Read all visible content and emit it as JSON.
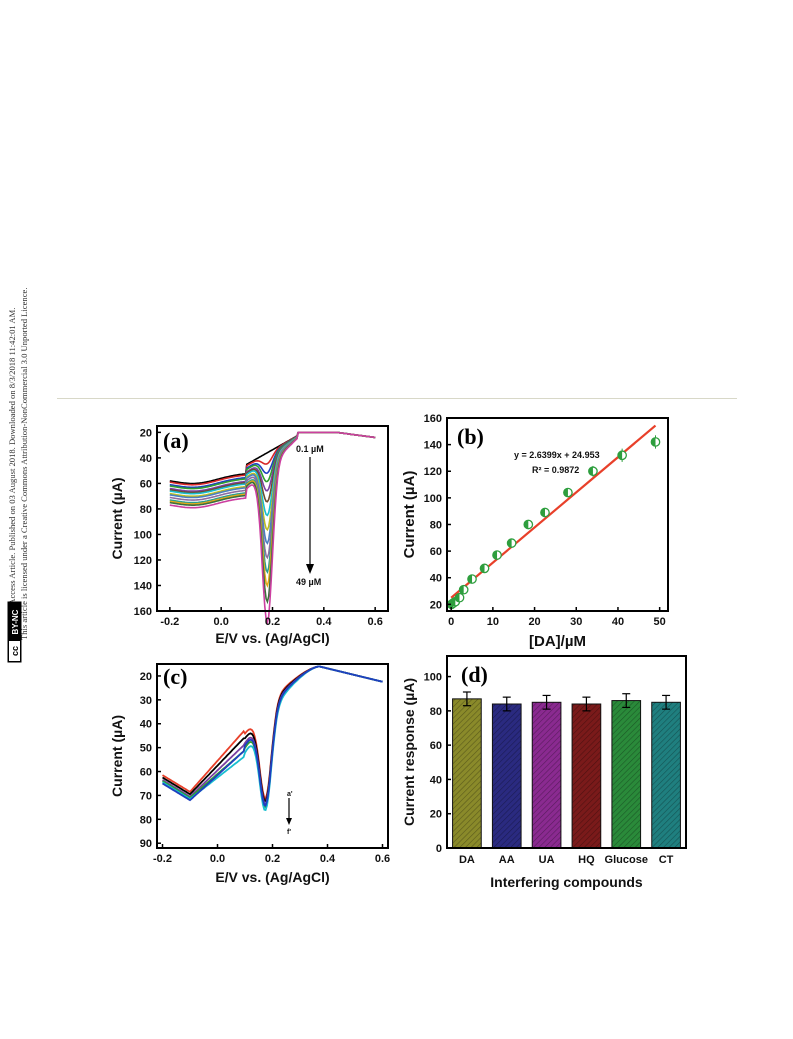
{
  "license": {
    "line1": "Open Access Article. Published on 03 August 2018. Downloaded on 8/3/2018 11:42:01 AM.",
    "line2": "This article is licensed under a Creative Commons Attribution-NonCommercial 3.0 Unported Licence.",
    "badge_cc": "cc",
    "badge_text": "BY-NC"
  },
  "chart_data": [
    {
      "id": "a",
      "type": "line",
      "panel_label": "(a)",
      "xlabel": "E/V vs. (Ag/AgCl)",
      "ylabel": "Current (µA)",
      "xlim": [
        -0.25,
        0.65
      ],
      "ylim": [
        160,
        15
      ],
      "x_ticks": [
        -0.2,
        0.0,
        0.2,
        0.4,
        0.6
      ],
      "x_tick_labels": [
        "-0.2",
        "0.0",
        "0.2",
        "0.4",
        "0.6"
      ],
      "y_ticks": [
        20,
        40,
        60,
        80,
        100,
        120,
        140,
        160
      ],
      "annotations": [
        "0.1 µM",
        "49 µM"
      ],
      "series": [
        {
          "color": "#000000",
          "base": 55,
          "peak": 20
        },
        {
          "color": "#d62728",
          "base": 56,
          "peak": 28
        },
        {
          "color": "#1f3fbf",
          "base": 58,
          "peak": 34
        },
        {
          "color": "#2e9e2e",
          "base": 59,
          "peak": 40
        },
        {
          "color": "#7a3fa0",
          "base": 61,
          "peak": 46
        },
        {
          "color": "#6b4c2f",
          "base": 62,
          "peak": 54
        },
        {
          "color": "#17becf",
          "base": 63,
          "peak": 64
        },
        {
          "color": "#bcbd22",
          "base": 65,
          "peak": 74
        },
        {
          "color": "#4a7fc0",
          "base": 66,
          "peak": 84
        },
        {
          "color": "#8c6d9e",
          "base": 68,
          "peak": 94
        },
        {
          "color": "#2a9d8f",
          "base": 70,
          "peak": 104
        },
        {
          "color": "#e6a817",
          "base": 71,
          "peak": 114
        },
        {
          "color": "#3c6e3c",
          "base": 72,
          "peak": 126
        },
        {
          "color": "#cc3fa0",
          "base": 74,
          "peak": 141
        }
      ]
    },
    {
      "id": "b",
      "type": "scatter",
      "panel_label": "(b)",
      "xlabel": "[DA]/µM",
      "ylabel": "Current (µA)",
      "xlim": [
        -1,
        52
      ],
      "ylim": [
        15,
        160
      ],
      "x_ticks": [
        0,
        10,
        20,
        30,
        40,
        50
      ],
      "y_ticks": [
        20,
        40,
        60,
        80,
        100,
        120,
        140,
        160
      ],
      "equation": "y = 2.6399x + 24.953",
      "r_squared": "R² = 0.9872",
      "fit": {
        "slope": 2.6399,
        "intercept": 24.953,
        "x_range": [
          0,
          49
        ]
      },
      "points": [
        {
          "x": 0.1,
          "y": 20,
          "err": 2
        },
        {
          "x": 0.5,
          "y": 21,
          "err": 2
        },
        {
          "x": 1,
          "y": 22,
          "err": 2
        },
        {
          "x": 2,
          "y": 25,
          "err": 2
        },
        {
          "x": 3,
          "y": 31,
          "err": 2
        },
        {
          "x": 5,
          "y": 39,
          "err": 2
        },
        {
          "x": 8,
          "y": 47,
          "err": 2
        },
        {
          "x": 11,
          "y": 57,
          "err": 2
        },
        {
          "x": 14.5,
          "y": 66,
          "err": 2
        },
        {
          "x": 18.5,
          "y": 80,
          "err": 2
        },
        {
          "x": 22.5,
          "y": 89,
          "err": 2
        },
        {
          "x": 28,
          "y": 104,
          "err": 3
        },
        {
          "x": 34,
          "y": 120,
          "err": 4
        },
        {
          "x": 41,
          "y": 132,
          "err": 5
        },
        {
          "x": 49,
          "y": 142,
          "err": 5
        }
      ],
      "marker_color": "#2e9e3e",
      "fit_color": "#e8402a"
    },
    {
      "id": "c",
      "type": "line",
      "panel_label": "(c)",
      "xlabel": "E/V vs. (Ag/AgCl)",
      "ylabel": "Current (µA)",
      "xlim": [
        -0.22,
        0.62
      ],
      "ylim": [
        92,
        15
      ],
      "x_ticks": [
        -0.2,
        0.0,
        0.2,
        0.4,
        0.6
      ],
      "x_tick_labels": [
        "-0.2",
        "0.0",
        "0.2",
        "0.4",
        "0.6"
      ],
      "y_ticks": [
        20,
        30,
        40,
        50,
        60,
        70,
        80,
        90
      ],
      "annotation_top": "a'",
      "annotation_bottom": "f'",
      "series": [
        {
          "color": "#e8402a",
          "offset": -1.5,
          "shoulder": 44
        },
        {
          "color": "#000000",
          "offset": -0.5,
          "shoulder": 46
        },
        {
          "color": "#7a3fa0",
          "offset": 0.5,
          "shoulder": 48
        },
        {
          "color": "#2e9e2e",
          "offset": 1.0,
          "shoulder": 50
        },
        {
          "color": "#17becf",
          "offset": 1.5,
          "shoulder": 52
        },
        {
          "color": "#1f3fbf",
          "offset": 2.0,
          "shoulder": 49
        }
      ]
    },
    {
      "id": "d",
      "type": "bar",
      "panel_label": "(d)",
      "xlabel": "Interfering compounds",
      "ylabel": "Current response (µA)",
      "ylim": [
        0,
        112
      ],
      "y_ticks": [
        0,
        20,
        40,
        60,
        80,
        100
      ],
      "categories": [
        "DA",
        "AA",
        "UA",
        "HQ",
        "Glucose",
        "CT"
      ],
      "values": [
        87,
        84,
        85,
        84,
        86,
        85
      ],
      "errors": [
        4,
        4,
        4,
        4,
        4,
        4
      ],
      "colors": [
        "#8a8a2a",
        "#2a2a80",
        "#8a2a90",
        "#7a1a1a",
        "#2a8a3a",
        "#1f7f7f"
      ]
    }
  ]
}
